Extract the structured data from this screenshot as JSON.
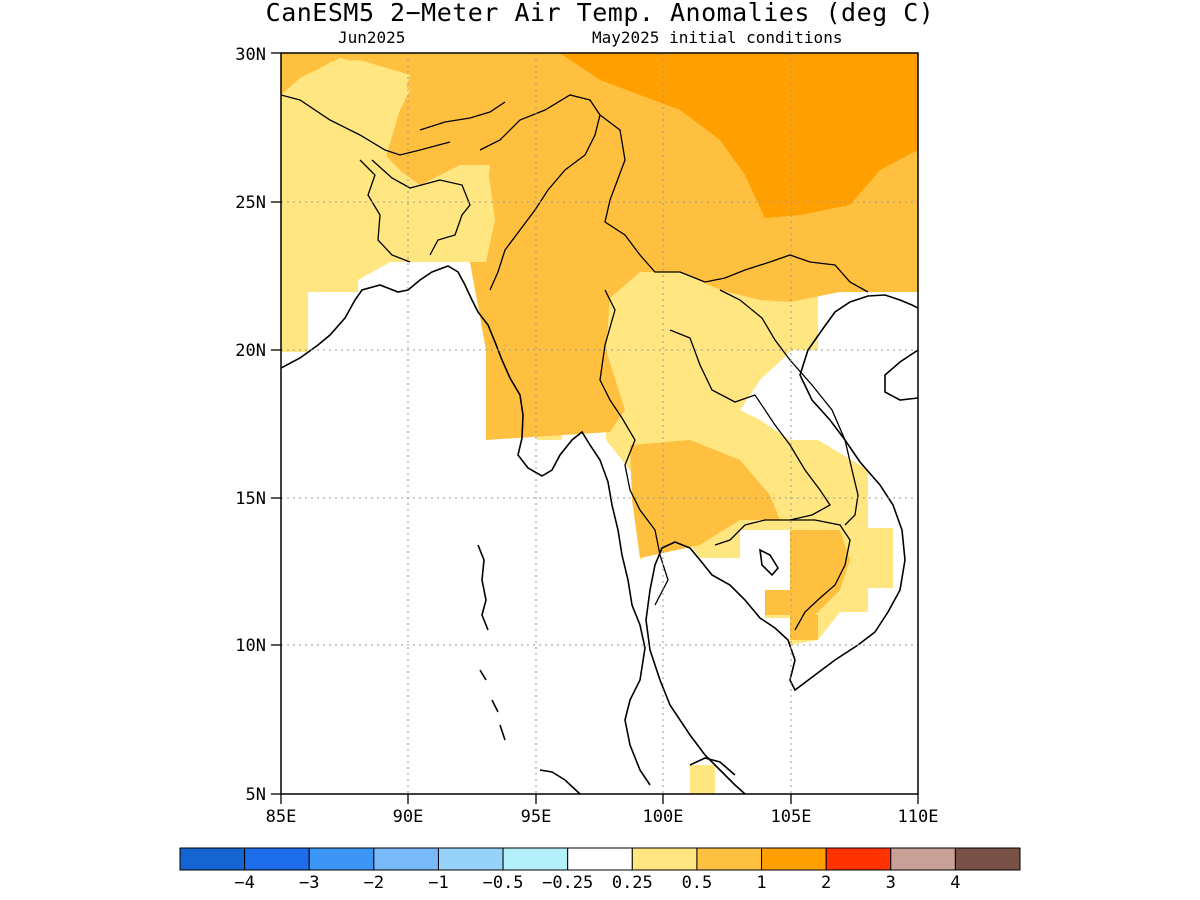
{
  "title": "CanESM5 2−Meter Air Temp. Anomalies (deg C)",
  "subtitle_left": "Jun2025",
  "subtitle_right": "May2025 initial conditions",
  "map": {
    "lon_range": [
      85,
      110
    ],
    "lat_range": [
      5,
      30
    ],
    "x_ticks": [
      "85E",
      "90E",
      "95E",
      "100E",
      "105E",
      "110E"
    ],
    "y_ticks": [
      "5N",
      "10N",
      "15N",
      "20N",
      "25N",
      "30N"
    ],
    "grid": "dotted",
    "colors": {
      "white": "#ffffff",
      "light_yellow": "#ffe680",
      "light_orange": "#ffc040",
      "orange": "#ffa000"
    }
  },
  "colorbar": {
    "colors": [
      "#1464d2",
      "#1e6eeb",
      "#3c96f5",
      "#78b9fa",
      "#96d2fa",
      "#b4f0fa",
      "#ffffff",
      "#ffe680",
      "#ffc040",
      "#ffa000",
      "#ff3200",
      "#c8a096",
      "#785046"
    ],
    "labels": [
      "−4",
      "−3",
      "−2",
      "−1",
      "−0.5",
      "−0.25",
      "0.25",
      "0.5",
      "1",
      "2",
      "3",
      "4"
    ]
  }
}
